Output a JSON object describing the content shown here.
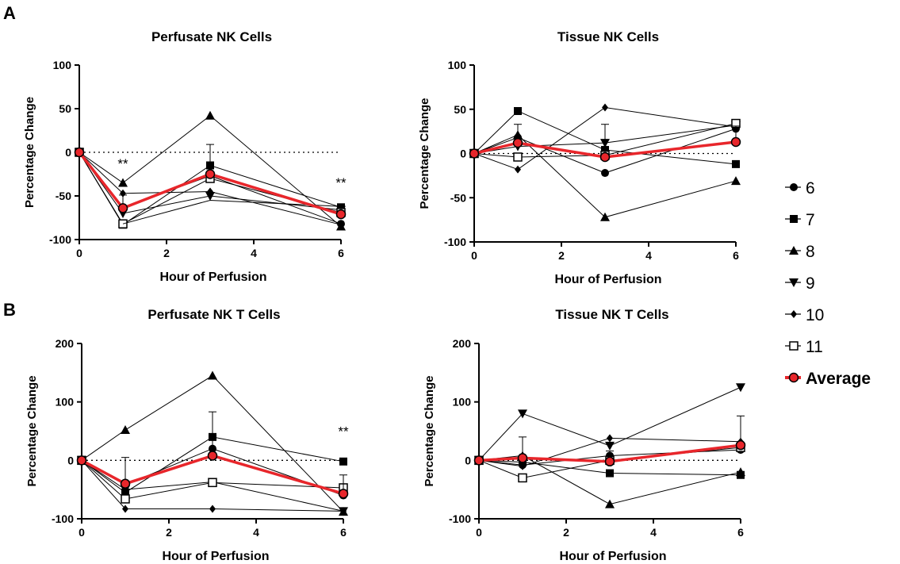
{
  "panel_labels": [
    "A",
    "B"
  ],
  "legend": {
    "entries": [
      {
        "label": "6",
        "marker": "circle"
      },
      {
        "label": "7",
        "marker": "square"
      },
      {
        "label": "8",
        "marker": "triangle-up"
      },
      {
        "label": "9",
        "marker": "triangle-down"
      },
      {
        "label": "10",
        "marker": "diamond"
      },
      {
        "label": "11",
        "marker": "open-square"
      },
      {
        "label": "Average",
        "marker": "average"
      }
    ],
    "average_color": "#e8262b"
  },
  "chart_data": [
    {
      "id": "perfusate-nk",
      "type": "line",
      "title": "Perfusate NK Cells",
      "xlabel": "Hour of Perfusion",
      "ylabel": "Percentage  Change",
      "x": [
        0,
        1,
        3,
        6
      ],
      "xlim": [
        0,
        6
      ],
      "xticks": [
        0,
        2,
        4,
        6
      ],
      "ylim": [
        -100,
        100
      ],
      "yticks": [
        -100,
        -50,
        0,
        50,
        100
      ],
      "series": [
        {
          "name": "6",
          "marker": "circle",
          "values": [
            0,
            -63,
            -27,
            -82
          ]
        },
        {
          "name": "7",
          "marker": "square",
          "values": [
            0,
            -83,
            -15,
            -63
          ]
        },
        {
          "name": "8",
          "marker": "triangle-up",
          "values": [
            0,
            -35,
            42,
            -85
          ]
        },
        {
          "name": "9",
          "marker": "triangle-down",
          "values": [
            0,
            -70,
            -50,
            -66
          ]
        },
        {
          "name": "10",
          "marker": "diamond",
          "values": [
            0,
            -47,
            -45,
            -83
          ]
        },
        {
          "name": "11",
          "marker": "open-square",
          "values": [
            0,
            -82,
            -30,
            -69
          ]
        }
      ],
      "average": {
        "values": [
          0,
          -64,
          -25,
          -71
        ],
        "error": [
          0,
          15,
          34,
          9
        ]
      },
      "extra_lines": [
        {
          "x": [
            1,
            3,
            6
          ],
          "values": [
            -82,
            -55,
            -62
          ]
        }
      ],
      "significance": [
        {
          "x": 1,
          "y": -18,
          "text": "**"
        },
        {
          "x": 6,
          "y": -40,
          "text": "**"
        }
      ]
    },
    {
      "id": "tissue-nk",
      "type": "line",
      "title": "Tissue NK Cells",
      "xlabel": "Hour of Perfusion",
      "ylabel": "Percentage Change",
      "x": [
        0,
        1,
        3,
        6
      ],
      "xlim": [
        0,
        6
      ],
      "xticks": [
        0,
        2,
        4,
        6
      ],
      "ylim": [
        -100,
        100
      ],
      "yticks": [
        -100,
        -50,
        0,
        50,
        100
      ],
      "series": [
        {
          "name": "6",
          "marker": "circle",
          "values": [
            0,
            18,
            -22,
            28
          ]
        },
        {
          "name": "7",
          "marker": "square",
          "values": [
            0,
            48,
            4,
            -12
          ]
        },
        {
          "name": "8",
          "marker": "triangle-up",
          "values": [
            0,
            21,
            -72,
            -31
          ]
        },
        {
          "name": "9",
          "marker": "triangle-down",
          "values": [
            0,
            8,
            12,
            32
          ]
        },
        {
          "name": "10",
          "marker": "diamond",
          "values": [
            0,
            -18,
            52,
            30
          ]
        },
        {
          "name": "11",
          "marker": "open-square",
          "values": [
            0,
            -4,
            -2,
            34
          ]
        }
      ],
      "average": {
        "values": [
          0,
          12,
          -4,
          13
        ],
        "error": [
          0,
          21,
          37,
          18
        ]
      },
      "extra_lines": [],
      "significance": []
    },
    {
      "id": "perfusate-nkt",
      "type": "line",
      "title": "Perfusate NK T Cells",
      "xlabel": "Hour of Perfusion",
      "ylabel": "Percentage Change",
      "x": [
        0,
        1,
        3,
        6
      ],
      "xlim": [
        0,
        6
      ],
      "xticks": [
        0,
        2,
        4,
        6
      ],
      "ylim": [
        -100,
        200
      ],
      "yticks": [
        -100,
        0,
        100,
        200
      ],
      "series": [
        {
          "name": "6",
          "marker": "circle",
          "values": [
            0,
            -42,
            20,
            -60
          ]
        },
        {
          "name": "7",
          "marker": "square",
          "values": [
            0,
            -55,
            40,
            -2
          ]
        },
        {
          "name": "8",
          "marker": "triangle-up",
          "values": [
            0,
            52,
            145,
            -88
          ]
        },
        {
          "name": "9",
          "marker": "triangle-down",
          "values": [
            0,
            -50,
            -37,
            -87
          ]
        },
        {
          "name": "10",
          "marker": "diamond",
          "values": [
            0,
            -83,
            -83,
            -87
          ]
        },
        {
          "name": "11",
          "marker": "open-square",
          "values": [
            0,
            -66,
            -38,
            -47
          ]
        }
      ],
      "average": {
        "values": [
          0,
          -40,
          8,
          -57
        ],
        "error": [
          0,
          45,
          75,
          32
        ]
      },
      "extra_lines": [],
      "significance": [
        {
          "x": 6,
          "y": 42,
          "text": "**"
        }
      ]
    },
    {
      "id": "tissue-nkt",
      "type": "line",
      "title": "Tissue NK T Cells",
      "xlabel": "Hour of Perfusion",
      "ylabel": "Percentage Change",
      "x": [
        0,
        1,
        3,
        6
      ],
      "xlim": [
        0,
        6
      ],
      "xticks": [
        0,
        2,
        4,
        6
      ],
      "ylim": [
        -100,
        200
      ],
      "yticks": [
        -100,
        0,
        100,
        200
      ],
      "series": [
        {
          "name": "6",
          "marker": "circle",
          "values": [
            0,
            -8,
            8,
            18
          ]
        },
        {
          "name": "7",
          "marker": "square",
          "values": [
            0,
            -3,
            -22,
            -25
          ]
        },
        {
          "name": "8",
          "marker": "triangle-up",
          "values": [
            0,
            8,
            -75,
            -20
          ]
        },
        {
          "name": "9",
          "marker": "triangle-down",
          "values": [
            0,
            80,
            25,
            125
          ]
        },
        {
          "name": "10",
          "marker": "diamond",
          "values": [
            0,
            -10,
            38,
            32
          ]
        },
        {
          "name": "11",
          "marker": "open-square",
          "values": [
            0,
            -30,
            0,
            22
          ]
        }
      ],
      "average": {
        "values": [
          0,
          4,
          -2,
          26
        ],
        "error": [
          0,
          36,
          18,
          50
        ]
      },
      "extra_lines": [],
      "significance": []
    }
  ]
}
